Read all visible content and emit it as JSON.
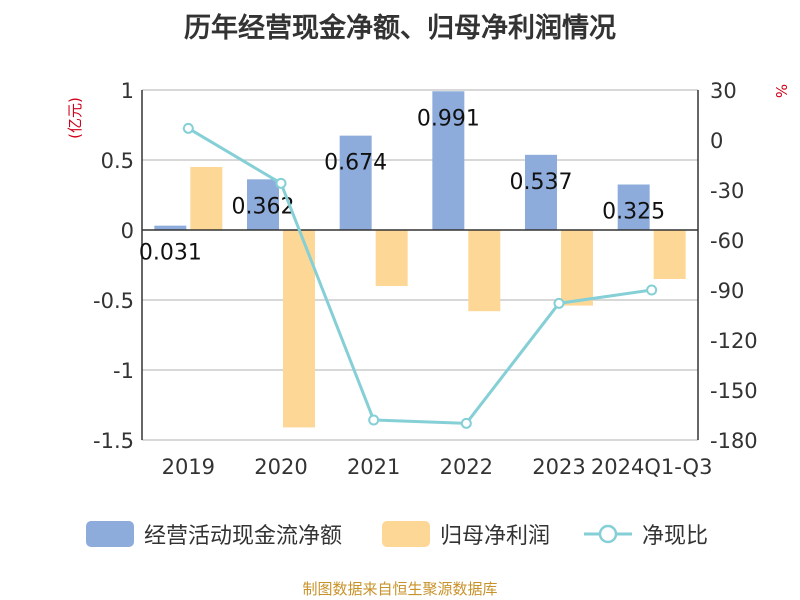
{
  "title": "历年经营现金净额、归母净利润情况",
  "source": "制图数据来自恒生聚源数据库",
  "colors": {
    "cash": "#8eacdb",
    "profit": "#fdd796",
    "ratio": "#85cfd6",
    "unit_left": "#d0021b",
    "unit_right": "#d0021b",
    "grid": "#cccccc",
    "axis": "#333333"
  },
  "chart_data": {
    "type": "bar",
    "categories": [
      "2019",
      "2020",
      "2021",
      "2022",
      "2023",
      "2024Q1-Q3"
    ],
    "series": [
      {
        "name": "经营活动现金流净额",
        "type": "bar",
        "axis": "left",
        "values": [
          0.031,
          0.362,
          0.674,
          0.991,
          0.537,
          0.325
        ],
        "labels": [
          "0.031",
          "0.362",
          "0.674",
          "0.991",
          "0.537",
          "0.325"
        ]
      },
      {
        "name": "归母净利润",
        "type": "bar",
        "axis": "left",
        "values": [
          0.45,
          -1.41,
          -0.4,
          -0.58,
          -0.54,
          -0.35
        ]
      },
      {
        "name": "净现比",
        "type": "line",
        "axis": "right",
        "values": [
          7,
          -26,
          -168,
          -170,
          -98,
          -90
        ]
      }
    ],
    "y_left": {
      "unit": "(亿元)",
      "ylim": [
        -1.5,
        1
      ],
      "ticks": [
        1,
        0.5,
        0,
        -0.5,
        -1,
        -1.5
      ],
      "tick_labels": [
        "1",
        "0.5",
        "0",
        "-0.5",
        "-1",
        "-1.5"
      ]
    },
    "y_right": {
      "unit": "%",
      "ylim": [
        -180,
        30
      ],
      "ticks": [
        30,
        0,
        -30,
        -60,
        -90,
        -120,
        -150,
        -180
      ],
      "tick_labels": [
        "30",
        "0",
        "-30",
        "-60",
        "-90",
        "-120",
        "-150",
        "-180"
      ]
    },
    "grid": true,
    "legend_position": "bottom"
  }
}
